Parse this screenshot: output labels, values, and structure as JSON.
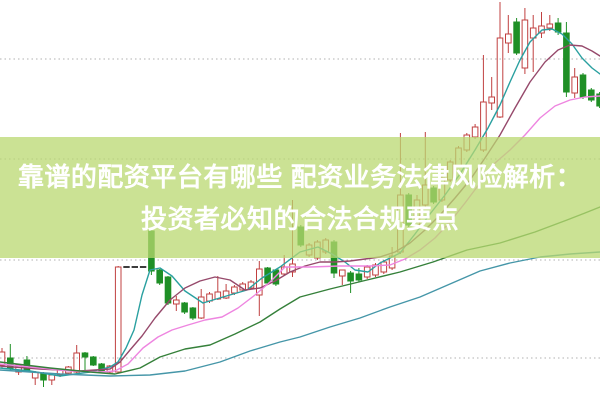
{
  "banner": {
    "line1": "靠谱的配资平台有哪些 配资业务法律风险解析：",
    "line2": "投资者必知的合法合规要点",
    "bg_color": "rgba(186,216,112,0.75)",
    "text_color": "#ffffff"
  },
  "chart_data": {
    "type": "candlestick",
    "title": "",
    "ylim": [
      0,
      40
    ],
    "grid": "on",
    "gridline_values": [
      34.1,
      24.1,
      14.0,
      4.2
    ],
    "legend": "none",
    "colors": {
      "up": "#c04040",
      "down": "#1f8f26",
      "grid": "#b0b0b0",
      "halt": "#3d3d3d",
      "background": "#ffffff"
    },
    "layout": {
      "first_x": 2,
      "step": 8.3,
      "body_width": 5.6,
      "y_origin": 400,
      "y_per_unit": 10
    },
    "candles": [
      {
        "o": 3.5,
        "h": 5.2,
        "l": 3.2,
        "c": 4.8
      },
      {
        "o": 4.2,
        "h": 5.6,
        "l": 3.0,
        "c": 3.2
      },
      {
        "o": 2.8,
        "h": 3.6,
        "l": 2.5,
        "c": 3.5
      },
      {
        "o": 4.0,
        "h": 4.4,
        "l": 2.9,
        "c": 3.0
      },
      {
        "o": 2.2,
        "h": 2.9,
        "l": 1.5,
        "c": 2.8
      },
      {
        "o": 2.7,
        "h": 2.8,
        "l": 1.3,
        "c": 2.0
      },
      {
        "o": 2.0,
        "h": 2.6,
        "l": 1.5,
        "c": 2.5
      },
      {
        "o": 2.5,
        "h": 3.1,
        "l": 2.3,
        "c": 3.0
      },
      {
        "o": 2.7,
        "h": 3.4,
        "l": 2.6,
        "c": 3.3
      },
      {
        "o": 2.8,
        "h": 5.5,
        "l": 2.7,
        "c": 4.7
      },
      {
        "o": 4.7,
        "h": 4.8,
        "l": 3.0,
        "c": 4.3
      },
      {
        "o": 4.3,
        "h": 4.4,
        "l": 3.4,
        "c": 3.5
      },
      {
        "o": 3.6,
        "h": 3.7,
        "l": 2.8,
        "c": 2.9
      },
      {
        "o": 2.8,
        "h": 3.5,
        "l": 2.7,
        "c": 3.4
      },
      {
        "o": 2.8,
        "h": 13.4,
        "l": 2.7,
        "c": 13.3
      },
      {
        "halt": 13.3
      },
      {
        "halt": 13.3
      },
      {
        "halt": 13.3
      },
      {
        "o": 16.9,
        "h": 17.2,
        "l": 12.5,
        "c": 12.9
      },
      {
        "o": 13.0,
        "h": 13.1,
        "l": 11.5,
        "c": 11.7
      },
      {
        "o": 12.3,
        "h": 12.4,
        "l": 9.5,
        "c": 9.7
      },
      {
        "o": 9.6,
        "h": 10.4,
        "l": 8.9,
        "c": 10.0
      },
      {
        "o": 9.7,
        "h": 9.8,
        "l": 8.6,
        "c": 8.8
      },
      {
        "o": 9.2,
        "h": 9.3,
        "l": 8.0,
        "c": 8.2
      },
      {
        "o": 8.2,
        "h": 11.1,
        "l": 8.1,
        "c": 10.3
      },
      {
        "o": 9.9,
        "h": 10.8,
        "l": 9.7,
        "c": 10.6
      },
      {
        "o": 10.1,
        "h": 12.4,
        "l": 10.0,
        "c": 10.8
      },
      {
        "o": 10.2,
        "h": 11.6,
        "l": 10.1,
        "c": 10.9
      },
      {
        "o": 10.7,
        "h": 11.5,
        "l": 10.5,
        "c": 11.3
      },
      {
        "o": 11.0,
        "h": 11.8,
        "l": 10.9,
        "c": 11.6
      },
      {
        "o": 11.2,
        "h": 12.0,
        "l": 11.1,
        "c": 11.8
      },
      {
        "o": 10.5,
        "h": 13.9,
        "l": 8.4,
        "c": 13.1
      },
      {
        "o": 13.2,
        "h": 13.3,
        "l": 11.5,
        "c": 11.7
      },
      {
        "o": 13.0,
        "h": 13.1,
        "l": 11.4,
        "c": 11.6
      },
      {
        "o": 12.6,
        "h": 14.5,
        "l": 12.4,
        "c": 13.3
      },
      {
        "o": 12.8,
        "h": 20.0,
        "l": 12.3,
        "c": 13.6
      },
      {
        "o": 17.3,
        "h": 17.5,
        "l": 15.3,
        "c": 15.5
      },
      {
        "o": 14.5,
        "h": 15.7,
        "l": 14.3,
        "c": 15.5
      },
      {
        "o": 14.2,
        "h": 16.0,
        "l": 14.0,
        "c": 15.8
      },
      {
        "o": 14.8,
        "h": 16.2,
        "l": 14.6,
        "c": 16.0
      },
      {
        "o": 15.8,
        "h": 16.0,
        "l": 12.2,
        "c": 12.7
      },
      {
        "o": 12.4,
        "h": 13.0,
        "l": 11.5,
        "c": 13.0
      },
      {
        "o": 12.7,
        "h": 12.9,
        "l": 10.7,
        "c": 11.9
      },
      {
        "o": 12.6,
        "h": 13.2,
        "l": 11.8,
        "c": 12.0
      },
      {
        "o": 12.3,
        "h": 13.5,
        "l": 12.1,
        "c": 13.3
      },
      {
        "o": 12.5,
        "h": 13.7,
        "l": 12.3,
        "c": 13.5
      },
      {
        "o": 12.8,
        "h": 14.0,
        "l": 12.6,
        "c": 13.8
      },
      {
        "o": 13.2,
        "h": 15.3,
        "l": 13.0,
        "c": 14.4
      },
      {
        "o": 14.8,
        "h": 26.7,
        "l": 14.6,
        "c": 20.5
      },
      {
        "o": 20.5,
        "h": 20.7,
        "l": 17.3,
        "c": 17.5
      },
      {
        "o": 17.5,
        "h": 20.5,
        "l": 17.3,
        "c": 20.0
      },
      {
        "o": 19.5,
        "h": 26.8,
        "l": 19.2,
        "c": 21.5
      },
      {
        "o": 21.2,
        "h": 21.4,
        "l": 19.6,
        "c": 19.8
      },
      {
        "o": 20.0,
        "h": 22.4,
        "l": 19.8,
        "c": 22.2
      },
      {
        "o": 22.0,
        "h": 24.0,
        "l": 21.8,
        "c": 23.8
      },
      {
        "o": 23.5,
        "h": 25.4,
        "l": 23.3,
        "c": 25.2
      },
      {
        "o": 25.0,
        "h": 26.7,
        "l": 24.8,
        "c": 26.5
      },
      {
        "o": 26.3,
        "h": 27.6,
        "l": 26.1,
        "c": 27.3
      },
      {
        "o": 25.0,
        "h": 34.5,
        "l": 24.8,
        "c": 29.8
      },
      {
        "o": 29.7,
        "h": 32.3,
        "l": 29.0,
        "c": 30.3
      },
      {
        "o": 28.3,
        "h": 39.8,
        "l": 28.2,
        "c": 36.2
      },
      {
        "o": 35.7,
        "h": 38.5,
        "l": 34.7,
        "c": 36.6
      },
      {
        "o": 37.8,
        "h": 38.2,
        "l": 34.5,
        "c": 34.7
      },
      {
        "o": 33.2,
        "h": 39.2,
        "l": 32.6,
        "c": 38.0
      },
      {
        "o": 36.2,
        "h": 38.5,
        "l": 32.8,
        "c": 37.2
      },
      {
        "o": 36.7,
        "h": 38.8,
        "l": 36.2,
        "c": 37.4
      },
      {
        "o": 37.2,
        "h": 38.5,
        "l": 36.9,
        "c": 37.6
      },
      {
        "o": 37.7,
        "h": 38.2,
        "l": 36.5,
        "c": 36.8
      },
      {
        "o": 36.7,
        "h": 37.8,
        "l": 30.3,
        "c": 30.8
      },
      {
        "o": 30.7,
        "h": 33.2,
        "l": 30.2,
        "c": 32.3
      },
      {
        "o": 32.5,
        "h": 32.7,
        "l": 30.1,
        "c": 30.3
      },
      {
        "o": 31.0,
        "h": 31.2,
        "l": 29.8,
        "c": 30.0
      },
      {
        "o": 30.6,
        "h": 30.8,
        "l": 29.2,
        "c": 29.4
      }
    ],
    "ma_series": [
      {
        "name": "MA5",
        "color": "#2aa0a0",
        "points": [
          [
            0,
            3.2
          ],
          [
            30,
            2.9
          ],
          [
            60,
            2.4
          ],
          [
            90,
            2.8
          ],
          [
            110,
            3.3
          ],
          [
            118,
            3.8
          ],
          [
            126,
            5.2
          ],
          [
            134,
            7.0
          ],
          [
            142,
            10.5
          ],
          [
            150,
            13.0
          ],
          [
            160,
            13.2
          ],
          [
            172,
            12.4
          ],
          [
            185,
            10.9
          ],
          [
            203,
            9.7
          ],
          [
            223,
            10.3
          ],
          [
            247,
            11.0
          ],
          [
            262,
            12.2
          ],
          [
            280,
            13.3
          ],
          [
            300,
            14.8
          ],
          [
            318,
            15.3
          ],
          [
            332,
            14.6
          ],
          [
            345,
            13.8
          ],
          [
            355,
            13.0
          ],
          [
            368,
            12.8
          ],
          [
            380,
            13.7
          ],
          [
            400,
            14.7
          ],
          [
            415,
            16.6
          ],
          [
            430,
            18.6
          ],
          [
            445,
            20.5
          ],
          [
            460,
            22.6
          ],
          [
            475,
            25.0
          ],
          [
            488,
            27.2
          ],
          [
            500,
            29.5
          ],
          [
            510,
            31.8
          ],
          [
            520,
            34.0
          ],
          [
            530,
            35.8
          ],
          [
            542,
            37.0
          ],
          [
            552,
            37.1
          ],
          [
            562,
            36.6
          ],
          [
            572,
            35.6
          ],
          [
            582,
            34.2
          ],
          [
            592,
            33.2
          ],
          [
            600,
            32.6
          ]
        ]
      },
      {
        "name": "MA10",
        "color": "#96496b",
        "points": [
          [
            0,
            3.4
          ],
          [
            40,
            3.1
          ],
          [
            80,
            2.9
          ],
          [
            110,
            3.1
          ],
          [
            120,
            3.8
          ],
          [
            130,
            5.0
          ],
          [
            142,
            6.4
          ],
          [
            155,
            8.2
          ],
          [
            170,
            10.0
          ],
          [
            185,
            11.2
          ],
          [
            200,
            11.9
          ],
          [
            215,
            12.3
          ],
          [
            230,
            12.0
          ],
          [
            245,
            11.0
          ],
          [
            260,
            11.2
          ],
          [
            275,
            11.9
          ],
          [
            290,
            12.8
          ],
          [
            305,
            13.4
          ],
          [
            320,
            13.8
          ],
          [
            335,
            13.8
          ],
          [
            350,
            13.9
          ],
          [
            365,
            14.1
          ],
          [
            380,
            14.3
          ],
          [
            395,
            14.8
          ],
          [
            410,
            15.7
          ],
          [
            425,
            17.0
          ],
          [
            440,
            18.5
          ],
          [
            455,
            20.2
          ],
          [
            470,
            22.0
          ],
          [
            485,
            24.2
          ],
          [
            500,
            26.5
          ],
          [
            515,
            29.2
          ],
          [
            530,
            31.8
          ],
          [
            545,
            33.8
          ],
          [
            558,
            35.0
          ],
          [
            570,
            35.5
          ],
          [
            582,
            35.4
          ],
          [
            592,
            34.9
          ],
          [
            600,
            34.4
          ]
        ]
      },
      {
        "name": "MA20",
        "color": "#ee85e0",
        "points": [
          [
            0,
            3.6
          ],
          [
            40,
            3.2
          ],
          [
            70,
            2.9
          ],
          [
            100,
            2.8
          ],
          [
            115,
            2.9
          ],
          [
            128,
            3.6
          ],
          [
            143,
            5.2
          ],
          [
            158,
            6.3
          ],
          [
            172,
            7.0
          ],
          [
            188,
            7.5
          ],
          [
            205,
            8.0
          ],
          [
            222,
            8.3
          ],
          [
            238,
            9.2
          ],
          [
            255,
            10.5
          ],
          [
            270,
            11.8
          ],
          [
            285,
            13.3
          ],
          [
            310,
            13.3
          ],
          [
            340,
            13.4
          ],
          [
            370,
            13.4
          ],
          [
            390,
            13.5
          ],
          [
            405,
            14.1
          ],
          [
            420,
            15.0
          ],
          [
            435,
            16.2
          ],
          [
            450,
            17.8
          ],
          [
            465,
            19.7
          ],
          [
            480,
            21.7
          ],
          [
            495,
            23.7
          ],
          [
            510,
            25.0
          ],
          [
            525,
            26.5
          ],
          [
            540,
            28.2
          ],
          [
            555,
            29.4
          ],
          [
            570,
            30.0
          ],
          [
            585,
            30.3
          ],
          [
            600,
            30.4
          ]
        ]
      },
      {
        "name": "MA60",
        "color": "#35803a",
        "points": [
          [
            0,
            3.8
          ],
          [
            50,
            3.2
          ],
          [
            90,
            2.8
          ],
          [
            115,
            2.6
          ],
          [
            140,
            3.2
          ],
          [
            160,
            4.3
          ],
          [
            185,
            5.1
          ],
          [
            210,
            5.5
          ],
          [
            235,
            6.6
          ],
          [
            260,
            7.8
          ],
          [
            280,
            9.1
          ],
          [
            300,
            10.3
          ],
          [
            330,
            11.1
          ],
          [
            367,
            12.0
          ],
          [
            400,
            12.8
          ],
          [
            433,
            13.8
          ],
          [
            467,
            15.0
          ],
          [
            500,
            15.7
          ],
          [
            535,
            16.8
          ],
          [
            567,
            18.0
          ],
          [
            585,
            18.7
          ],
          [
            600,
            19.3
          ]
        ]
      },
      {
        "name": "MA120",
        "color": "#4596a8",
        "points": [
          [
            0,
            3.0
          ],
          [
            60,
            2.6
          ],
          [
            110,
            2.4
          ],
          [
            150,
            2.5
          ],
          [
            185,
            2.9
          ],
          [
            220,
            3.8
          ],
          [
            250,
            4.9
          ],
          [
            280,
            5.8
          ],
          [
            300,
            6.3
          ],
          [
            330,
            7.3
          ],
          [
            360,
            8.2
          ],
          [
            390,
            9.3
          ],
          [
            420,
            10.3
          ],
          [
            450,
            11.6
          ],
          [
            480,
            12.9
          ],
          [
            510,
            13.7
          ],
          [
            540,
            14.3
          ],
          [
            570,
            14.6
          ],
          [
            600,
            14.8
          ]
        ]
      }
    ]
  }
}
